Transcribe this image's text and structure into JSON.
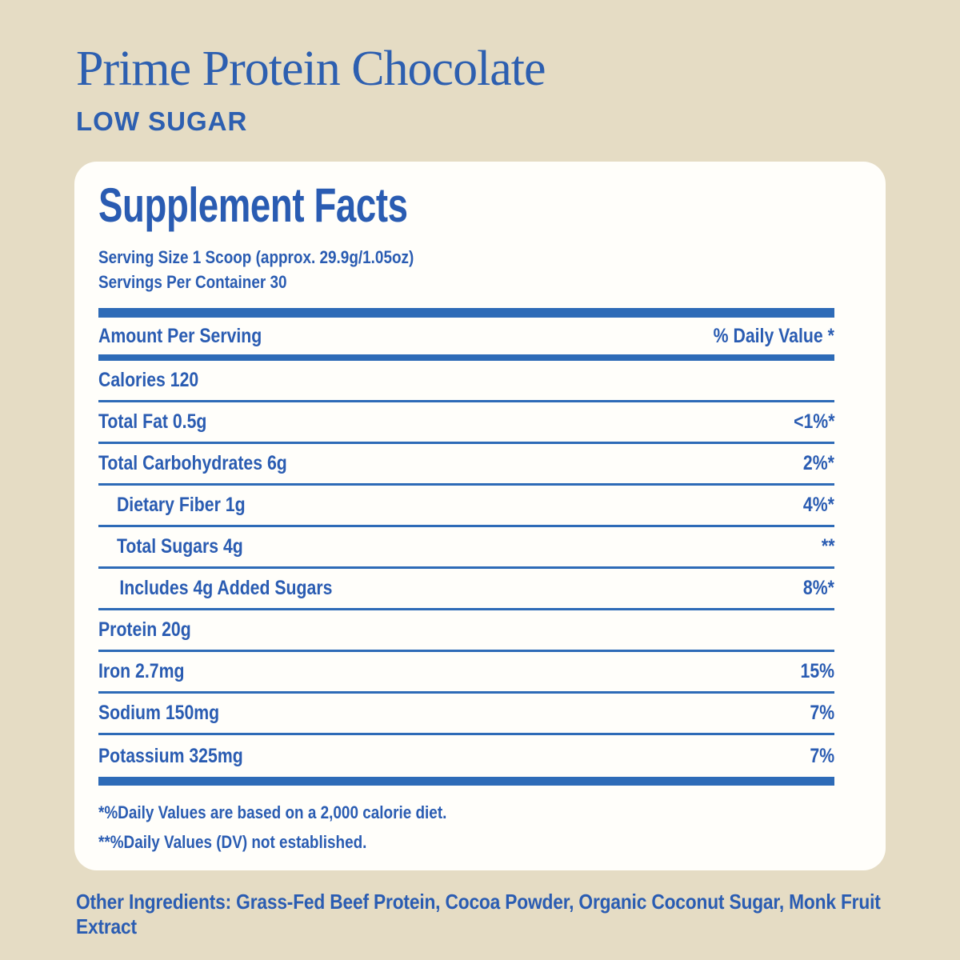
{
  "header": {
    "title": "Prime Protein Chocolate",
    "subtitle": "LOW SUGAR"
  },
  "panel": {
    "heading": "Supplement Facts",
    "serving_size": "Serving Size 1 Scoop (approx. 29.9g/1.05oz)",
    "servings_per_container": "Servings Per Container 30",
    "columns": {
      "left": "Amount Per Serving",
      "right": "% Daily Value *"
    },
    "rows": [
      {
        "label": "Calories 120",
        "value": "",
        "indent": 0
      },
      {
        "label": "Total Fat 0.5g",
        "value": "<1%*",
        "indent": 0
      },
      {
        "label": "Total Carbohydrates 6g",
        "value": "2%*",
        "indent": 0
      },
      {
        "label": "Dietary Fiber 1g",
        "value": "4%*",
        "indent": 1
      },
      {
        "label": "Total Sugars 4g",
        "value": "**",
        "indent": 1
      },
      {
        "label": "Includes 4g Added Sugars",
        "value": "8%*",
        "indent": 2
      },
      {
        "label": "Protein 20g",
        "value": "",
        "indent": 0
      },
      {
        "label": "Iron 2.7mg",
        "value": "15%",
        "indent": 0
      },
      {
        "label": "Sodium 150mg",
        "value": "7%",
        "indent": 0
      },
      {
        "label": "Potassium 325mg",
        "value": "7%",
        "indent": 0
      }
    ],
    "footnotes": [
      "*%Daily Values are based on a 2,000 calorie diet.",
      "**%Daily Values (DV) not established."
    ]
  },
  "other_ingredients": "Other Ingredients: Grass-Fed Beef Protein, Cocoa Powder, Organic Coconut Sugar, Monk Fruit Extract",
  "colors": {
    "background": "#e5dcc4",
    "card": "#fffefa",
    "text_blue": "#2a5cb2",
    "bar_blue": "#2e6bb7",
    "title_blue": "#2d5fb0"
  }
}
